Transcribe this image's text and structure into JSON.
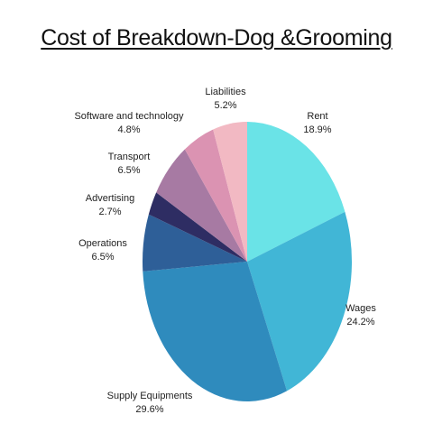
{
  "chart_data": {
    "type": "pie",
    "title": "Cost of Breakdown-Dog &Grooming",
    "slices": [
      {
        "label": "Rent",
        "value_text": "18.9%",
        "value": 18.9,
        "color": "#6AE3E7"
      },
      {
        "label": "Wages",
        "value_text": "24.2%",
        "value": 24.2,
        "color": "#41B6D6"
      },
      {
        "label": "Supply Equipments",
        "value_text": "29.6%",
        "value": 29.6,
        "color": "#2F8BBD"
      },
      {
        "label": "Operations",
        "value_text": "6.5%",
        "value": 6.5,
        "color": "#2E5F98"
      },
      {
        "label": "Advertising",
        "value_text": "2.7%",
        "value": 2.7,
        "color": "#2E2D63"
      },
      {
        "label": "Transport",
        "value_text": "6.5%",
        "value": 6.5,
        "color": "#A77AA3"
      },
      {
        "label": "Software and technology",
        "value_text": "4.8%",
        "value": 4.8,
        "color": "#DB93B2"
      },
      {
        "label": "Liabilities",
        "value_text": "5.2%",
        "value": 5.2,
        "color": "#F2B9C3"
      }
    ],
    "start_angle": "12 o'clock",
    "direction": "clockwise",
    "legend": "none"
  }
}
